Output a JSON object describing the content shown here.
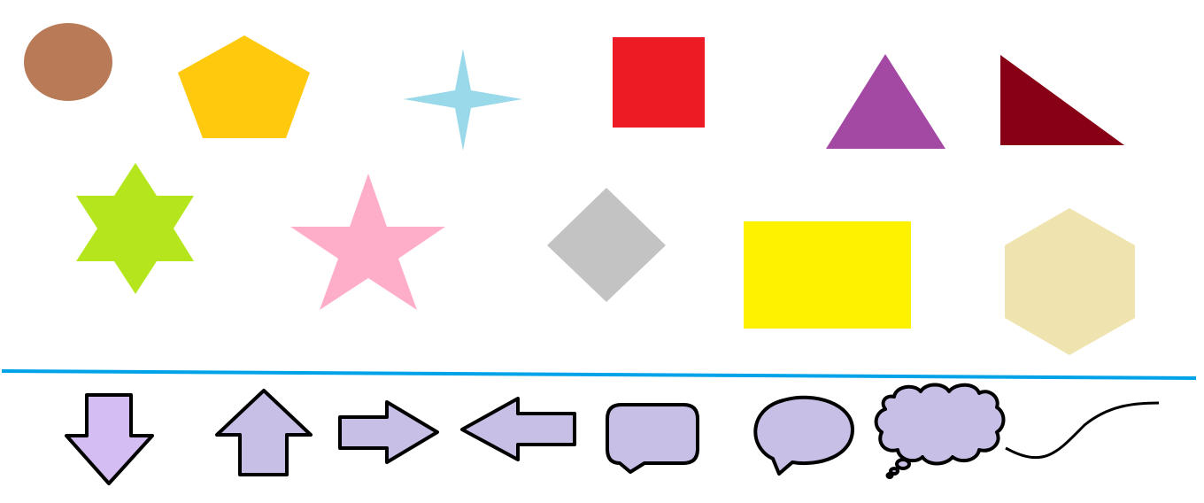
{
  "canvas": {
    "background": "#ffffff"
  },
  "shapes": [
    {
      "id": "oval",
      "icon": "oval-icon",
      "color": "#b97a57"
    },
    {
      "id": "pentagon",
      "icon": "pentagon-icon",
      "color": "#ffc90e"
    },
    {
      "id": "four-point-star",
      "icon": "four-point-star-icon",
      "color": "#99d9ea"
    },
    {
      "id": "square",
      "icon": "square-icon",
      "color": "#ed1c24"
    },
    {
      "id": "triangle",
      "icon": "triangle-icon",
      "color": "#a349a4"
    },
    {
      "id": "right-triangle",
      "icon": "right-triangle-icon",
      "color": "#880015"
    },
    {
      "id": "six-point-star",
      "icon": "six-point-star-icon",
      "color": "#b5e61d"
    },
    {
      "id": "five-point-star",
      "icon": "five-point-star-icon",
      "color": "#ffaec9"
    },
    {
      "id": "diamond",
      "icon": "diamond-icon",
      "color": "#c3c3c3"
    },
    {
      "id": "rectangle",
      "icon": "rectangle-icon",
      "color": "#fff200"
    },
    {
      "id": "hexagon",
      "icon": "hexagon-icon",
      "color": "#efe4b0"
    }
  ],
  "divider": {
    "color": "#00a2e8"
  },
  "callouts": {
    "fill": "#c8bfe7",
    "fill_alt": "#d3bdf2",
    "stroke": "#000000",
    "items": [
      {
        "id": "arrow-down",
        "icon": "arrow-down-icon"
      },
      {
        "id": "arrow-up",
        "icon": "arrow-up-icon"
      },
      {
        "id": "arrow-right",
        "icon": "arrow-right-icon"
      },
      {
        "id": "arrow-left",
        "icon": "arrow-left-icon"
      },
      {
        "id": "rounded-rectangle-callout",
        "icon": "rounded-rectangle-callout-icon"
      },
      {
        "id": "oval-callout",
        "icon": "oval-callout-icon"
      },
      {
        "id": "cloud-callout",
        "icon": "cloud-callout-icon"
      },
      {
        "id": "curve",
        "icon": "curve-icon"
      }
    ]
  }
}
